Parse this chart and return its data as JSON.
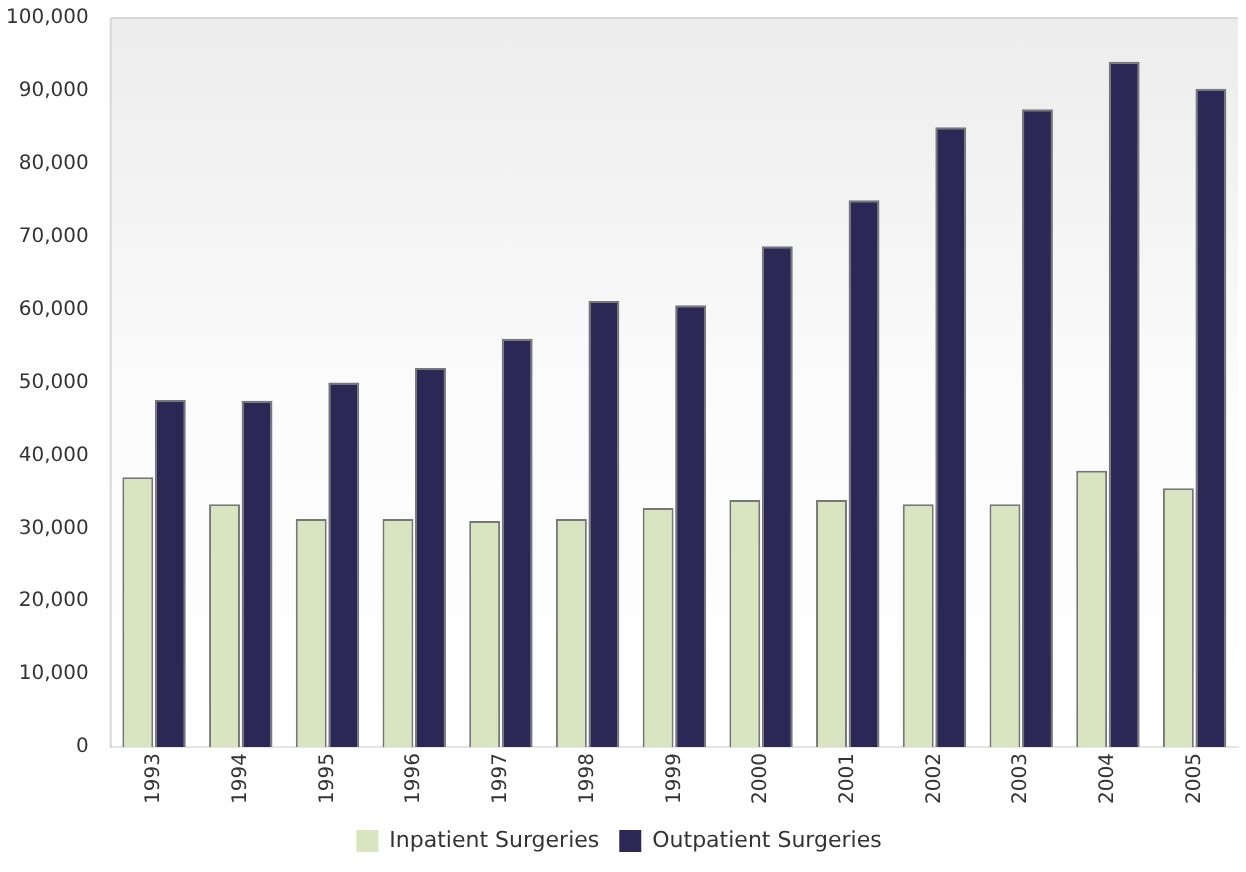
{
  "chart_data": {
    "type": "bar",
    "categories": [
      "1993",
      "1994",
      "1995",
      "1996",
      "1997",
      "1998",
      "1999",
      "2000",
      "2001",
      "2002",
      "2003",
      "2004",
      "2005"
    ],
    "series": [
      {
        "name": "Inpatient Surgeries",
        "color": "#d9e4c0",
        "values": [
          37000,
          33300,
          31300,
          31300,
          31000,
          31300,
          32800,
          33900,
          33900,
          33300,
          33300,
          37900,
          35500
        ]
      },
      {
        "name": "Outpatient Surgeries",
        "color": "#2b2856",
        "values": [
          47600,
          47500,
          50000,
          52000,
          56000,
          61200,
          60600,
          68700,
          75000,
          85000,
          87500,
          94000,
          90300
        ]
      }
    ],
    "ylim": [
      0,
      100000
    ],
    "yticks": [
      {
        "value": 0,
        "label": "0"
      },
      {
        "value": 10000,
        "label": "10,000"
      },
      {
        "value": 20000,
        "label": "20,000"
      },
      {
        "value": 30000,
        "label": "30,000"
      },
      {
        "value": 40000,
        "label": "40,000"
      },
      {
        "value": 50000,
        "label": "50,000"
      },
      {
        "value": 60000,
        "label": "60,000"
      },
      {
        "value": 70000,
        "label": "70,000"
      },
      {
        "value": 80000,
        "label": "80,000"
      },
      {
        "value": 90000,
        "label": "90,000"
      },
      {
        "value": 100000,
        "label": "100,000"
      }
    ],
    "grid": false,
    "legend": "bottom"
  }
}
